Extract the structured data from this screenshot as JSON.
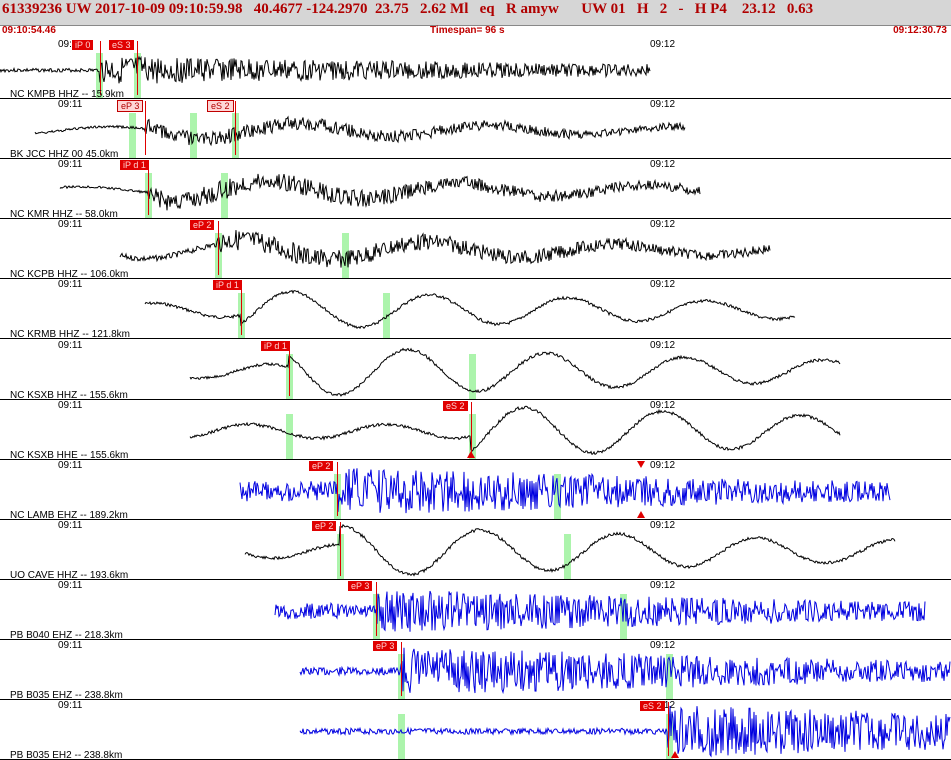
{
  "header": {
    "title": "61339236 UW 2017-10-09 09:10:59.98   40.4677 -124.2970  23.75   2.62 Ml   eq   R amyw      UW 01   H   2   -   H P4    23.12   0.63",
    "start_time": "09:10:54.46",
    "timespan": "Timespan=  96 s",
    "end_time": "09:12:30.73"
  },
  "time_ticks": [
    "09:11",
    "09:12"
  ],
  "colors": {
    "black_trace": "#000000",
    "blue_trace": "#0000e0",
    "pick": "#e00000",
    "window": "#9ef29e"
  },
  "traces": [
    {
      "label": "NC KMPB HHZ -- 15.9km",
      "color": "black",
      "picks": [
        {
          "text": "iP 0",
          "style": "red"
        },
        {
          "text": "eS 3",
          "style": "red"
        }
      ],
      "triangles": []
    },
    {
      "label": "BK JCC HHZ 00 45.0km",
      "color": "black",
      "picks": [
        {
          "text": "eP 3",
          "style": "pink"
        },
        {
          "text": "eS 2",
          "style": "pink"
        }
      ],
      "triangles": []
    },
    {
      "label": "NC KMR HHZ -- 58.0km",
      "color": "black",
      "picks": [
        {
          "text": "iP d 1",
          "style": "red"
        }
      ],
      "triangles": []
    },
    {
      "label": "NC KCPB HHZ -- 106.0km",
      "color": "black",
      "picks": [
        {
          "text": "eP 2",
          "style": "red"
        }
      ],
      "triangles": []
    },
    {
      "label": "NC KRMB HHZ -- 121.8km",
      "color": "black",
      "picks": [
        {
          "text": "iP d 1",
          "style": "red"
        }
      ],
      "triangles": []
    },
    {
      "label": "NC KSXB HHZ -- 155.6km",
      "color": "black",
      "picks": [
        {
          "text": "iP d 1",
          "style": "red"
        }
      ],
      "triangles": []
    },
    {
      "label": "NC KSXB HHE -- 155.6km",
      "color": "black",
      "picks": [
        {
          "text": "eS 2",
          "style": "red"
        }
      ],
      "triangles": [
        "up"
      ]
    },
    {
      "label": "NC LAMB EHZ -- 189.2km",
      "color": "blue",
      "picks": [
        {
          "text": "eP 2",
          "style": "red"
        }
      ],
      "triangles": [
        "down",
        "up"
      ]
    },
    {
      "label": "UO CAVE HHZ -- 193.6km",
      "color": "black",
      "picks": [
        {
          "text": "eP 2",
          "style": "red"
        }
      ],
      "triangles": []
    },
    {
      "label": "PB B040 EHZ -- 218.3km",
      "color": "blue",
      "picks": [
        {
          "text": "eP 3",
          "style": "red"
        }
      ],
      "triangles": []
    },
    {
      "label": "PB B035 EHZ -- 238.8km",
      "color": "blue",
      "picks": [
        {
          "text": "eP 3",
          "style": "red"
        }
      ],
      "triangles": []
    },
    {
      "label": "PB B035 EH2 -- 238.8km",
      "color": "blue",
      "picks": [
        {
          "text": "eS 2",
          "style": "red"
        }
      ],
      "triangles": [
        "up"
      ]
    }
  ]
}
